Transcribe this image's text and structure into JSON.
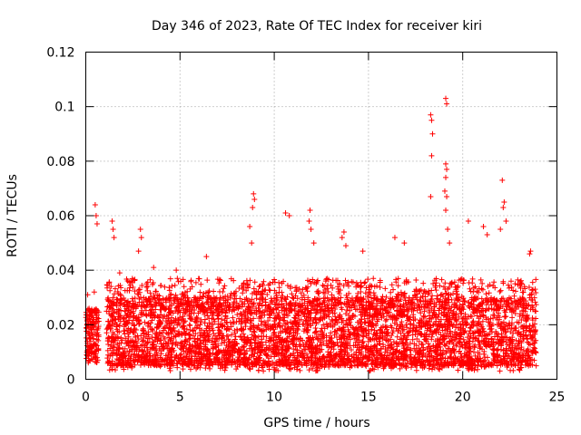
{
  "chart_data": {
    "type": "scatter",
    "title": "Day 346 of 2023, Rate Of TEC Index for receiver kiri",
    "xlabel": "GPS time / hours",
    "ylabel": "ROTI / TECUs",
    "xlim": [
      0,
      25
    ],
    "ylim": [
      0,
      0.12
    ],
    "x_ticks": [
      0,
      5,
      10,
      15,
      20,
      25
    ],
    "x_tick_labels": [
      "0",
      "5",
      "10",
      "15",
      "20",
      "25"
    ],
    "y_ticks": [
      0,
      0.02,
      0.04,
      0.06,
      0.08,
      0.1,
      0.12
    ],
    "y_tick_labels": [
      "0",
      "0.02",
      "0.04",
      "0.06",
      "0.08",
      "0.1",
      "0.12"
    ],
    "grid": true,
    "marker": "plus",
    "color": "#ff0000",
    "data_range_x": [
      0,
      23.9
    ],
    "typical_band": [
      0.005,
      0.03
    ],
    "notable_points": [
      {
        "x": 0.5,
        "y": 0.064
      },
      {
        "x": 0.55,
        "y": 0.06
      },
      {
        "x": 0.6,
        "y": 0.057
      },
      {
        "x": 0.1,
        "y": 0.031
      },
      {
        "x": 0.45,
        "y": 0.032
      },
      {
        "x": 1.4,
        "y": 0.058
      },
      {
        "x": 1.45,
        "y": 0.055
      },
      {
        "x": 1.5,
        "y": 0.052
      },
      {
        "x": 1.8,
        "y": 0.039
      },
      {
        "x": 2.9,
        "y": 0.055
      },
      {
        "x": 2.95,
        "y": 0.052
      },
      {
        "x": 2.8,
        "y": 0.047
      },
      {
        "x": 3.6,
        "y": 0.041
      },
      {
        "x": 4.8,
        "y": 0.04
      },
      {
        "x": 6.4,
        "y": 0.045
      },
      {
        "x": 8.9,
        "y": 0.068
      },
      {
        "x": 8.95,
        "y": 0.066
      },
      {
        "x": 8.85,
        "y": 0.063
      },
      {
        "x": 8.7,
        "y": 0.056
      },
      {
        "x": 8.8,
        "y": 0.05
      },
      {
        "x": 10.6,
        "y": 0.061
      },
      {
        "x": 10.8,
        "y": 0.06
      },
      {
        "x": 11.9,
        "y": 0.062
      },
      {
        "x": 11.85,
        "y": 0.058
      },
      {
        "x": 11.95,
        "y": 0.055
      },
      {
        "x": 12.1,
        "y": 0.05
      },
      {
        "x": 13.7,
        "y": 0.054
      },
      {
        "x": 13.6,
        "y": 0.052
      },
      {
        "x": 13.8,
        "y": 0.049
      },
      {
        "x": 14.7,
        "y": 0.047
      },
      {
        "x": 16.4,
        "y": 0.052
      },
      {
        "x": 16.9,
        "y": 0.05
      },
      {
        "x": 18.3,
        "y": 0.097
      },
      {
        "x": 18.35,
        "y": 0.095
      },
      {
        "x": 18.4,
        "y": 0.09
      },
      {
        "x": 18.35,
        "y": 0.082
      },
      {
        "x": 18.3,
        "y": 0.067
      },
      {
        "x": 19.1,
        "y": 0.103
      },
      {
        "x": 19.15,
        "y": 0.101
      },
      {
        "x": 19.1,
        "y": 0.079
      },
      {
        "x": 19.15,
        "y": 0.077
      },
      {
        "x": 19.1,
        "y": 0.074
      },
      {
        "x": 19.05,
        "y": 0.069
      },
      {
        "x": 19.15,
        "y": 0.067
      },
      {
        "x": 19.1,
        "y": 0.062
      },
      {
        "x": 19.2,
        "y": 0.055
      },
      {
        "x": 19.3,
        "y": 0.05
      },
      {
        "x": 20.3,
        "y": 0.058
      },
      {
        "x": 21.1,
        "y": 0.056
      },
      {
        "x": 21.3,
        "y": 0.053
      },
      {
        "x": 22.1,
        "y": 0.073
      },
      {
        "x": 22.2,
        "y": 0.065
      },
      {
        "x": 22.15,
        "y": 0.063
      },
      {
        "x": 22.3,
        "y": 0.058
      },
      {
        "x": 22.0,
        "y": 0.055
      },
      {
        "x": 23.6,
        "y": 0.047
      },
      {
        "x": 23.55,
        "y": 0.046
      }
    ]
  },
  "colors": {
    "points": "#ff0000",
    "grid": "#a0a0a0",
    "frame": "#000000"
  }
}
